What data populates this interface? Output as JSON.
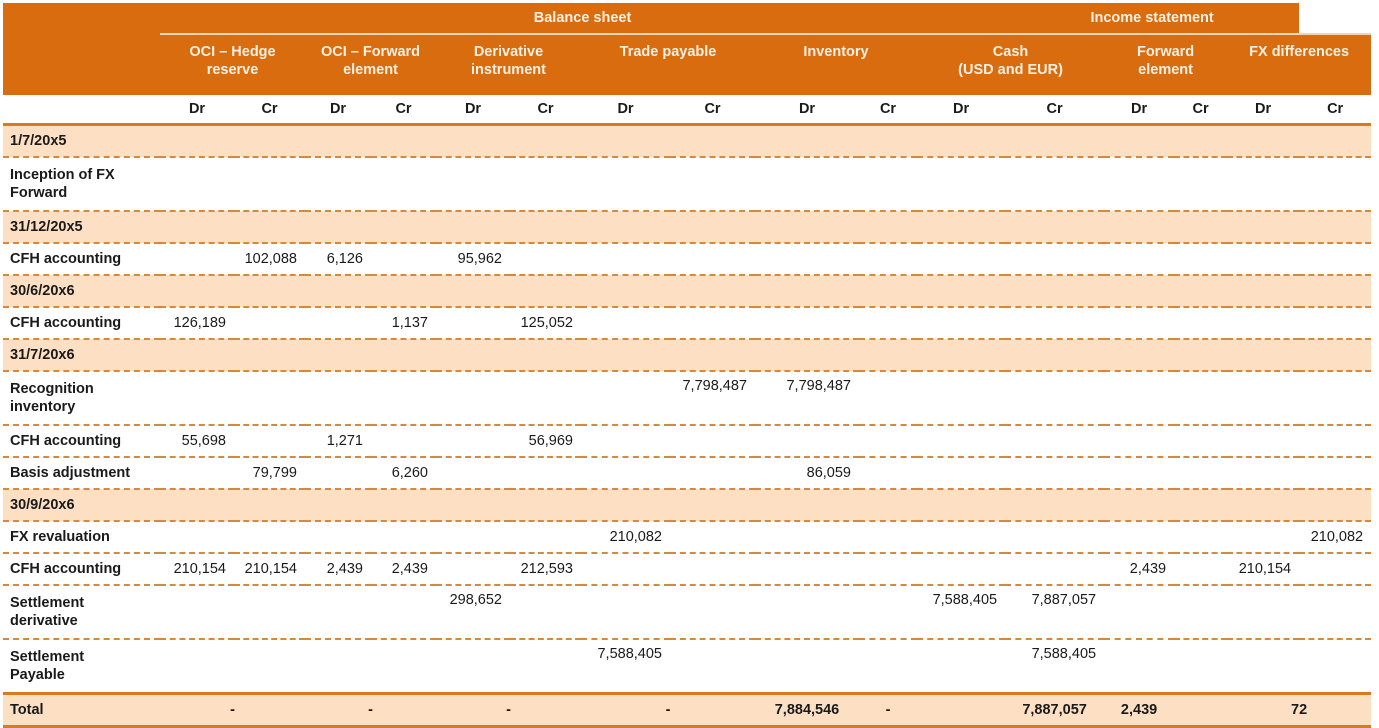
{
  "header": {
    "groups": [
      {
        "label": "Balance sheet"
      },
      {
        "label": "Income statement"
      }
    ],
    "accounts": [
      {
        "label": "OCI – Hedge reserve",
        "line1": "OCI – Hedge",
        "line2": "reserve"
      },
      {
        "label": "OCI – Forward element",
        "line1": "OCI – Forward",
        "line2": "element"
      },
      {
        "label": "Derivative instrument",
        "line1": "Derivative",
        "line2": "instrument"
      },
      {
        "label": "Trade payable",
        "line1": "Trade payable",
        "line2": ""
      },
      {
        "label": "Inventory",
        "line1": "Inventory",
        "line2": ""
      },
      {
        "label": "Cash (USD and EUR)",
        "line1": "Cash",
        "line2": "(USD and EUR)"
      },
      {
        "label": "Forward element",
        "line1": "Forward",
        "line2": "element"
      },
      {
        "label": "FX differences",
        "line1": "FX differences",
        "line2": ""
      }
    ],
    "dr_label": "Dr",
    "cr_label": "Cr"
  },
  "rows": [
    {
      "type": "date",
      "label": "1/7/20x5"
    },
    {
      "type": "entry",
      "tall": true,
      "label1": "Inception of FX",
      "label2": "Forward",
      "values": [
        "",
        "",
        "",
        "",
        "",
        "",
        "",
        "",
        "",
        "",
        "",
        "",
        "",
        "",
        "",
        ""
      ]
    },
    {
      "type": "date",
      "label": "31/12/20x5"
    },
    {
      "type": "entry",
      "label1": "CFH accounting",
      "values": [
        "",
        "102,088",
        "6,126",
        "",
        "95,962",
        "",
        "",
        "",
        "",
        "",
        "",
        "",
        "",
        "",
        "",
        ""
      ]
    },
    {
      "type": "date",
      "label": "30/6/20x6"
    },
    {
      "type": "entry",
      "label1": "CFH accounting",
      "values": [
        "126,189",
        "",
        "",
        "1,137",
        "",
        "125,052",
        "",
        "",
        "",
        "",
        "",
        "",
        "",
        "",
        "",
        ""
      ]
    },
    {
      "type": "date",
      "label": "31/7/20x6"
    },
    {
      "type": "entry",
      "tall": true,
      "label1": "Recognition",
      "label2": "inventory",
      "values": [
        "",
        "",
        "",
        "",
        "",
        "",
        "",
        "7,798,487",
        "7,798,487",
        "",
        "",
        "",
        "",
        "",
        "",
        ""
      ]
    },
    {
      "type": "entry",
      "label1": "CFH accounting",
      "values": [
        "55,698",
        "",
        "1,271",
        "",
        "",
        "56,969",
        "",
        "",
        "",
        "",
        "",
        "",
        "",
        "",
        "",
        ""
      ]
    },
    {
      "type": "entry",
      "label1": "Basis adjustment",
      "values": [
        "",
        "79,799",
        "",
        "6,260",
        "",
        "",
        "",
        "",
        "86,059",
        "",
        "",
        "",
        "",
        "",
        "",
        ""
      ]
    },
    {
      "type": "date",
      "label": "30/9/20x6"
    },
    {
      "type": "entry",
      "label1": "FX revaluation",
      "values": [
        "",
        "",
        "",
        "",
        "",
        "",
        "210,082",
        "",
        "",
        "",
        "",
        "",
        "",
        "",
        "",
        "210,082"
      ]
    },
    {
      "type": "entry",
      "label1": "CFH accounting",
      "values": [
        "210,154",
        "210,154",
        "2,439",
        "2,439",
        "",
        "212,593",
        "",
        "",
        "",
        "",
        "",
        "",
        "2,439",
        "",
        "210,154",
        ""
      ]
    },
    {
      "type": "entry",
      "tall": true,
      "label1": "Settlement",
      "label2": "derivative",
      "values": [
        "",
        "",
        "",
        "",
        "298,652",
        "",
        "",
        "",
        "",
        "",
        "7,588,405",
        "7,887,057",
        "",
        "",
        "",
        ""
      ]
    },
    {
      "type": "entry",
      "tall": true,
      "last": true,
      "label1": "Settlement",
      "label2": "Payable",
      "values": [
        "",
        "",
        "",
        "",
        "",
        "",
        "7,588,405",
        "",
        "",
        "",
        "",
        "7,588,405",
        "",
        "",
        "",
        ""
      ]
    }
  ],
  "total": {
    "label": "Total",
    "oci_hedge": "-",
    "oci_forward": "-",
    "derivative": "-",
    "trade_payable": "-",
    "inventory_dr": "7,884,546",
    "inventory_cr": "-",
    "cash": "7,887,057",
    "forward_element": "2,439",
    "fx_differences": "72"
  },
  "colors": {
    "header_bg": "#d86c0e",
    "header_text": "#fdf1e4",
    "date_row_bg": "#fde0c4",
    "rule": "#d87a22"
  }
}
